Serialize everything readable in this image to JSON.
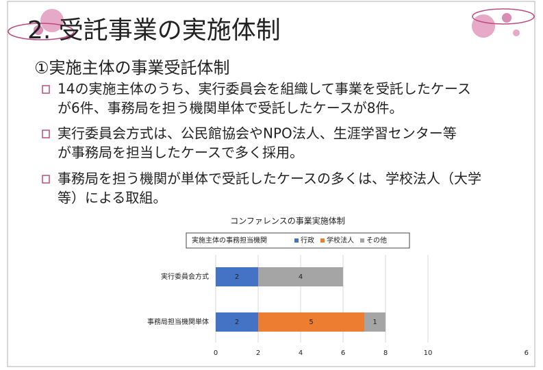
{
  "slide": {
    "title": "2. 受託事業の実施体制",
    "subtitle": "①実施主体の事業受託体制",
    "bullets": [
      {
        "lines": [
          "14の実施主体のうち、実行委員会を組織して事業を受託したケース",
          "が6件、事務局を担う機関単体で受託したケースが8件。"
        ]
      },
      {
        "lines": [
          "実行委員会方式は、公民館協会やNPO法人、生涯学習センター等",
          "が事務局を担当したケースで多く採用。"
        ]
      },
      {
        "lines": [
          "事務局を担う機関が単体で受託したケースの多くは、学校法人（大学",
          "等）による取組。"
        ]
      }
    ],
    "page_number": "6"
  },
  "chart_data": {
    "type": "stacked-horizontal-bar",
    "title": "コンファレンスの事業実施体制",
    "legend_title": "実施主体の事務担当機関",
    "categories": [
      "実行委員会方式",
      "事務局担当機関単体"
    ],
    "series": [
      {
        "name": "行政",
        "color": "#4472c4",
        "values": [
          2,
          2
        ]
      },
      {
        "name": "学校法人",
        "color": "#ed7d31",
        "values": [
          null,
          5
        ]
      },
      {
        "name": "その他",
        "color": "#a5a5a5",
        "values": [
          4,
          1
        ]
      }
    ],
    "xlim": [
      0,
      10
    ],
    "xticks": [
      0,
      2,
      4,
      6,
      8,
      10
    ],
    "grid": true
  }
}
